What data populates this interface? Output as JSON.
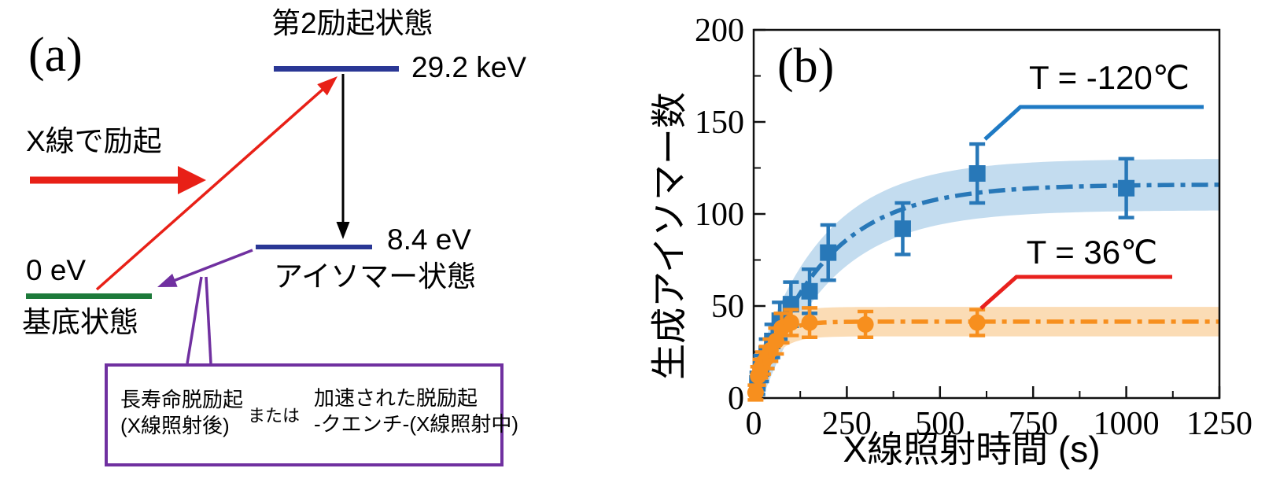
{
  "panel_a": {
    "label": "(a)",
    "excited_state_name": "第2励起状態",
    "excited_state_energy": "29.2 keV",
    "isomer_state_name": "アイソマー状態",
    "isomer_state_energy": "8.4 eV",
    "ground_state_name": "基底状態",
    "ground_state_energy": "0 eV",
    "excitation_label": "X線で励起",
    "callout_box": {
      "left_line1": "長寿命脱励起",
      "left_line2": "(X線照射後)",
      "middle": "または",
      "right_line1": "加速された脱励起",
      "right_line2": "-クエンチ-(X線照射中)"
    },
    "colors": {
      "level_navy": "#2a3795",
      "ground_green": "#1d7a3a",
      "red": "#e82017",
      "purple": "#7030a0",
      "black": "#000000"
    }
  },
  "panel_b": {
    "label": "(b)"
  },
  "chart_data": {
    "type": "scatter",
    "title": "",
    "xlabel": "X線照射時間 (s)",
    "ylabel": "生成アイソマー数",
    "xlim": [
      0,
      1250
    ],
    "ylim": [
      0,
      200
    ],
    "x_major_ticks": [
      0,
      250,
      500,
      750,
      1000,
      1250
    ],
    "x_minor_step": 125,
    "y_major_ticks": [
      0,
      50,
      100,
      150,
      200
    ],
    "y_minor_step": 25,
    "grid": false,
    "legend_position": "inline-annotations",
    "series": [
      {
        "name": "T = -120℃",
        "marker": "square",
        "color": "#2878b8",
        "band_color": "#c3dcef",
        "band_halfwidth": 14,
        "fit": {
          "type": "saturating_exponential",
          "amplitude": 116,
          "tau": 185
        },
        "x": [
          10,
          20,
          35,
          50,
          70,
          100,
          150,
          200,
          400,
          600,
          1000
        ],
        "y": [
          8,
          16,
          24,
          31,
          42,
          51,
          58,
          79,
          92,
          122,
          114
        ],
        "yerr": [
          6,
          7,
          8,
          9,
          10,
          12,
          12,
          15,
          14,
          16,
          16
        ]
      },
      {
        "name": "T = 36℃",
        "marker": "circle",
        "color": "#f78f1e",
        "band_color": "#fbdcb5",
        "band_halfwidth": 8,
        "fit": {
          "type": "saturating_exponential",
          "amplitude": 41.5,
          "tau": 42
        },
        "x": [
          5,
          12,
          18,
          25,
          35,
          45,
          60,
          75,
          100,
          150,
          300,
          600
        ],
        "y": [
          3,
          12,
          16,
          19,
          22,
          26,
          31,
          38,
          41,
          41,
          40,
          41
        ],
        "yerr": [
          4,
          5,
          5,
          6,
          6,
          6,
          7,
          8,
          7,
          8,
          7,
          7
        ]
      }
    ],
    "annotations": [
      {
        "text": "T = -120℃",
        "line_color": "#1f7ac4",
        "points_to_series": "T = -120℃"
      },
      {
        "text": "T = 36℃",
        "line_color": "#e8211d",
        "points_to_series": "T = 36℃"
      }
    ]
  }
}
